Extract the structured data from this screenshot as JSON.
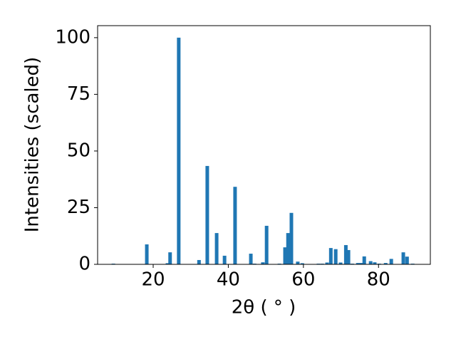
{
  "chart_data": {
    "type": "bar",
    "xlabel": "2θ ( ° )",
    "ylabel": "Intensities (scaled)",
    "x": [
      9.4,
      18.3,
      23.8,
      24.5,
      26.8,
      32.2,
      34.4,
      36.9,
      39.0,
      41.8,
      46.0,
      47.0,
      49.2,
      50.2,
      53.6,
      55.1,
      55.9,
      56.8,
      58.5,
      59.7,
      64.0,
      65.0,
      66.3,
      67.3,
      68.6,
      69.9,
      71.3,
      72.0,
      73.0,
      74.5,
      75.4,
      76.2,
      77.9,
      79.0,
      80.2,
      81.9,
      83.4,
      86.6,
      87.6,
      89.1
    ],
    "values": [
      0.3,
      8.8,
      0.5,
      5.3,
      100,
      1.9,
      43.4,
      13.8,
      3.8,
      34.2,
      4.7,
      0.3,
      0.9,
      17.0,
      0.3,
      7.5,
      13.8,
      22.7,
      1.2,
      0.5,
      0.3,
      0.3,
      0.8,
      7.2,
      6.7,
      0.8,
      8.5,
      6.3,
      0.3,
      0.6,
      0.6,
      3.5,
      1.4,
      0.9,
      0.3,
      0.6,
      2.4,
      5.3,
      3.4,
      0.3
    ],
    "color": "#1f77b4",
    "xlim": [
      5.2,
      93.8
    ],
    "xticks": [
      20,
      40,
      60,
      80
    ],
    "ylim": [
      0,
      105.3
    ],
    "yticks": [
      0,
      25,
      50,
      75,
      100
    ]
  }
}
